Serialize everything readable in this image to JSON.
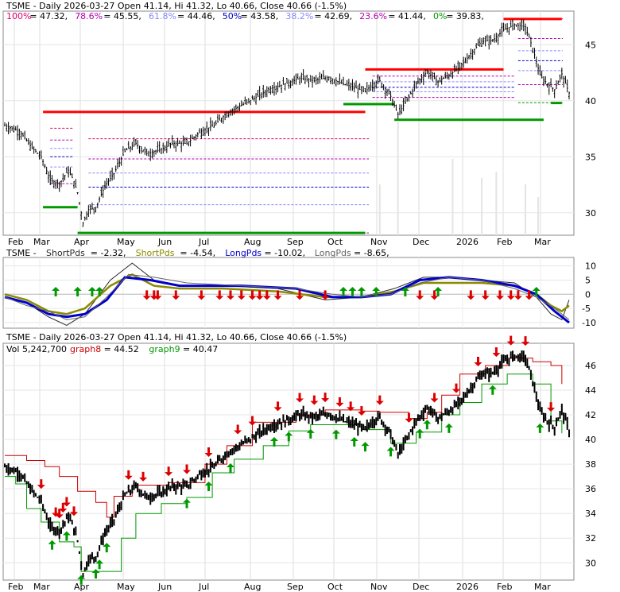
{
  "chart_data": [
    {
      "type": "candlestick",
      "panel": "price",
      "header": {
        "title": "TSME - Daily 2026-03-27 Open 41.14, Hi 41.32, Lo 40.66, Close 40.66 (-1.5%)",
        "fib_levels": [
          {
            "label": "100%",
            "value": "47.32",
            "color": "#e0006e"
          },
          {
            "label": "78.6%",
            "value": "45.55",
            "color": "#b400b4"
          },
          {
            "label": "61.8%",
            "value": "44.46",
            "color": "#8888ff"
          },
          {
            "label": "50%",
            "value": "43.58",
            "color": "#0000cc"
          },
          {
            "label": "38.2%",
            "value": "42.69",
            "color": "#8888ff"
          },
          {
            "label": "23.6%",
            "value": "41.44",
            "color": "#b400b4"
          },
          {
            "label": "0%",
            "value": "39.83",
            "color": "#009900"
          }
        ]
      },
      "x_labels": [
        "Feb",
        "Mar",
        "Apr",
        "May",
        "Jun",
        "Jul",
        "Aug",
        "Sep",
        "Oct",
        "Nov",
        "Dec",
        "2026",
        "Feb",
        "Mar"
      ],
      "y_ticks": [
        30,
        35,
        40,
        45
      ],
      "ylim": [
        28,
        48
      ],
      "resistance_levels": [
        {
          "y": 39.0,
          "x_from": "Mar",
          "x_to": "Oct"
        },
        {
          "y": 42.8,
          "x_from": "Oct",
          "x_to": "Feb"
        },
        {
          "y": 47.3,
          "x_from": "Feb",
          "x_to": "Mar"
        }
      ],
      "support_levels": [
        {
          "y": 30.5,
          "x_from": "Mar",
          "x_to": "Apr"
        },
        {
          "y": 28.2,
          "x_from": "Apr",
          "x_to": "Oct"
        },
        {
          "y": 39.7,
          "x_from": "Oct",
          "x_to": "Nov"
        },
        {
          "y": 38.3,
          "x_from": "Nov",
          "x_to": "Mar"
        },
        {
          "y": 39.8,
          "x_from": "Mar",
          "x_to": "Mar"
        }
      ],
      "price_path": [
        [
          0,
          37.8
        ],
        [
          8,
          37.3
        ],
        [
          15,
          35.8
        ],
        [
          20,
          35.0
        ],
        [
          25,
          32.9
        ],
        [
          30,
          32.6
        ],
        [
          35,
          33.8
        ],
        [
          38,
          32.8
        ],
        [
          40,
          31.8
        ],
        [
          43,
          29.1
        ],
        [
          46,
          30.3
        ],
        [
          50,
          30.5
        ],
        [
          55,
          32.4
        ],
        [
          60,
          33.5
        ],
        [
          66,
          35.5
        ],
        [
          72,
          36.2
        ],
        [
          78,
          35.3
        ],
        [
          85,
          35.6
        ],
        [
          92,
          36.2
        ],
        [
          100,
          36.2
        ],
        [
          108,
          37.3
        ],
        [
          115,
          37.8
        ],
        [
          122,
          38.9
        ],
        [
          130,
          39.6
        ],
        [
          138,
          40.3
        ],
        [
          146,
          41.1
        ],
        [
          154,
          41.5
        ],
        [
          162,
          42.0
        ],
        [
          170,
          41.8
        ],
        [
          178,
          42.1
        ],
        [
          186,
          41.5
        ],
        [
          192,
          41.2
        ],
        [
          198,
          40.8
        ],
        [
          202,
          41.5
        ],
        [
          206,
          41.8
        ],
        [
          212,
          40.4
        ],
        [
          216,
          38.8
        ],
        [
          220,
          39.8
        ],
        [
          226,
          41.5
        ],
        [
          232,
          42.6
        ],
        [
          238,
          41.7
        ],
        [
          244,
          42.3
        ],
        [
          250,
          43.0
        ],
        [
          256,
          44.2
        ],
        [
          262,
          45.3
        ],
        [
          268,
          45.4
        ],
        [
          274,
          46.3
        ],
        [
          280,
          46.8
        ],
        [
          286,
          46.6
        ],
        [
          290,
          44.7
        ],
        [
          294,
          42.3
        ],
        [
          298,
          41.5
        ],
        [
          302,
          41.0
        ],
        [
          306,
          42.4
        ],
        [
          310,
          40.7
        ]
      ],
      "volume_path": [
        [
          206,
          8
        ],
        [
          216,
          18
        ],
        [
          246,
          12
        ],
        [
          262,
          9
        ],
        [
          270,
          10
        ],
        [
          286,
          8
        ],
        [
          293,
          6
        ]
      ]
    },
    {
      "type": "line",
      "panel": "oscillator",
      "header": {
        "title": "TSME",
        "series_labels": [
          {
            "label": "ShortPds",
            "value": "-2.32",
            "color": "#2a2a2a"
          },
          {
            "label": "ShortPds",
            "value": "-4.54",
            "color": "#8b8b00"
          },
          {
            "label": "LongPds",
            "value": "-10.02",
            "color": "#0000cc"
          },
          {
            "label": "LongPds",
            "value": "-8.65",
            "color": "#666666"
          }
        ]
      },
      "y_ticks": [
        10,
        5,
        0,
        -5,
        -10
      ],
      "ylim": [
        -12,
        13
      ],
      "series": [
        {
          "name": "ShortPds",
          "color": "#2a2a2a",
          "values": [
            [
              0,
              -1
            ],
            [
              12,
              -3
            ],
            [
              24,
              -8
            ],
            [
              34,
              -11
            ],
            [
              44,
              -7
            ],
            [
              58,
              5
            ],
            [
              70,
              11
            ],
            [
              82,
              5
            ],
            [
              96,
              3
            ],
            [
              120,
              3
            ],
            [
              150,
              2
            ],
            [
              176,
              -2
            ],
            [
              196,
              -1
            ],
            [
              214,
              2
            ],
            [
              230,
              6
            ],
            [
              244,
              6
            ],
            [
              262,
              5
            ],
            [
              280,
              4
            ],
            [
              292,
              -1
            ],
            [
              300,
              -7
            ],
            [
              306,
              -9
            ],
            [
              310,
              -2
            ]
          ]
        },
        {
          "name": "ShortPds",
          "color": "#8b8b00",
          "values": [
            [
              0,
              0
            ],
            [
              12,
              -2
            ],
            [
              24,
              -6
            ],
            [
              34,
              -7
            ],
            [
              44,
              -5
            ],
            [
              58,
              3
            ],
            [
              70,
              7
            ],
            [
              82,
              3
            ],
            [
              96,
              2
            ],
            [
              120,
              2
            ],
            [
              150,
              1
            ],
            [
              176,
              -1
            ],
            [
              196,
              -1
            ],
            [
              214,
              1
            ],
            [
              230,
              4
            ],
            [
              244,
              4
            ],
            [
              262,
              4
            ],
            [
              280,
              3
            ],
            [
              292,
              0
            ],
            [
              300,
              -4
            ],
            [
              306,
              -6
            ],
            [
              310,
              -4
            ]
          ]
        },
        {
          "name": "LongPds",
          "color": "#0000cc",
          "values": [
            [
              0,
              -1
            ],
            [
              12,
              -3
            ],
            [
              24,
              -7
            ],
            [
              34,
              -8
            ],
            [
              44,
              -7
            ],
            [
              56,
              -2
            ],
            [
              66,
              6
            ],
            [
              80,
              5
            ],
            [
              96,
              3
            ],
            [
              130,
              3
            ],
            [
              160,
              2
            ],
            [
              180,
              -1
            ],
            [
              196,
              -1
            ],
            [
              212,
              0
            ],
            [
              228,
              5
            ],
            [
              244,
              6
            ],
            [
              262,
              5
            ],
            [
              280,
              3
            ],
            [
              292,
              0
            ],
            [
              302,
              -6
            ],
            [
              310,
              -10
            ]
          ]
        },
        {
          "name": "LongPds",
          "color": "#666666",
          "values": [
            [
              0,
              -1
            ],
            [
              12,
              -4
            ],
            [
              24,
              -6
            ],
            [
              34,
              -9
            ],
            [
              44,
              -8
            ],
            [
              56,
              -1
            ],
            [
              68,
              7
            ],
            [
              82,
              6
            ],
            [
              100,
              4
            ],
            [
              130,
              3
            ],
            [
              160,
              2
            ],
            [
              180,
              0
            ],
            [
              196,
              -1
            ],
            [
              212,
              0
            ],
            [
              228,
              4
            ],
            [
              244,
              6
            ],
            [
              262,
              5
            ],
            [
              280,
              2
            ],
            [
              292,
              -1
            ],
            [
              302,
              -5
            ],
            [
              310,
              -9
            ]
          ]
        }
      ],
      "signals_up": [
        28,
        40,
        48,
        52,
        186,
        191,
        196,
        204,
        220,
        238,
        292
      ],
      "signals_down": [
        78,
        82,
        84,
        94,
        108,
        118,
        124,
        130,
        136,
        140,
        144,
        150,
        162,
        176,
        228,
        236,
        256,
        264,
        272,
        278,
        282,
        288
      ]
    },
    {
      "type": "candlestick",
      "panel": "detail",
      "header": {
        "title": "TSME - Daily 2026-03-27 Open 41.14, Hi 41.32, Lo 40.66, Close 40.66 (-1.5%)",
        "volume_text": "Vol 5,242,700",
        "series_labels": [
          {
            "label": "graph8",
            "value": "44.52",
            "color": "#cc0000"
          },
          {
            "label": "graph9",
            "value": "40.47",
            "color": "#009900"
          }
        ]
      },
      "x_labels": [
        "Feb",
        "Mar",
        "Apr",
        "May",
        "Jun",
        "Jul",
        "Aug",
        "Sep",
        "Oct",
        "Nov",
        "Dec",
        "2026",
        "Feb",
        "Mar"
      ],
      "y_ticks": [
        30,
        32,
        34,
        36,
        38,
        40,
        42,
        44,
        46
      ],
      "ylim": [
        28.6,
        47.8
      ],
      "series": [
        {
          "name": "graph8",
          "color": "#cc0000",
          "values": [
            [
              0,
              38.7
            ],
            [
              12,
              38.3
            ],
            [
              22,
              37.8
            ],
            [
              30,
              37.0
            ],
            [
              40,
              35.8
            ],
            [
              50,
              34.9
            ],
            [
              56,
              33.7
            ],
            [
              60,
              35.4
            ],
            [
              70,
              36.3
            ],
            [
              90,
              36.5
            ],
            [
              110,
              38.0
            ],
            [
              122,
              39.5
            ],
            [
              136,
              41.4
            ],
            [
              160,
              42.0
            ],
            [
              176,
              42.4
            ],
            [
              196,
              42.3
            ],
            [
              206,
              42.2
            ],
            [
              222,
              41.7
            ],
            [
              232,
              42.2
            ],
            [
              240,
              43.6
            ],
            [
              250,
              45.3
            ],
            [
              264,
              46.0
            ],
            [
              276,
              46.6
            ],
            [
              290,
              46.3
            ],
            [
              300,
              46.0
            ],
            [
              306,
              44.5
            ]
          ]
        },
        {
          "name": "graph9",
          "color": "#009900",
          "values": [
            [
              0,
              37.0
            ],
            [
              6,
              36.4
            ],
            [
              12,
              34.4
            ],
            [
              20,
              33.3
            ],
            [
              30,
              31.7
            ],
            [
              38,
              31.3
            ],
            [
              42,
              29.3
            ],
            [
              56,
              29.3
            ],
            [
              64,
              32.0
            ],
            [
              72,
              34.0
            ],
            [
              86,
              34.8
            ],
            [
              100,
              35.3
            ],
            [
              114,
              37.3
            ],
            [
              126,
              38.4
            ],
            [
              142,
              39.5
            ],
            [
              156,
              40.7
            ],
            [
              168,
              41.2
            ],
            [
              180,
              41.2
            ],
            [
              196,
              40.8
            ],
            [
              212,
              39.7
            ],
            [
              226,
              40.6
            ],
            [
              240,
              42.0
            ],
            [
              250,
              43.0
            ],
            [
              262,
              44.5
            ],
            [
              276,
              45.3
            ],
            [
              290,
              44.5
            ],
            [
              300,
              41.5
            ],
            [
              306,
              40.5
            ]
          ]
        }
      ],
      "signals_up": [
        26,
        34,
        42,
        50,
        52,
        56,
        100,
        112,
        124,
        148,
        156,
        168,
        182,
        192,
        198,
        212,
        228,
        232,
        244,
        268,
        294
      ],
      "signals_down": [
        20,
        28,
        30,
        32,
        34,
        38,
        68,
        76,
        90,
        100,
        112,
        128,
        136,
        150,
        162,
        170,
        176,
        184,
        190,
        196,
        206,
        222,
        236,
        248,
        260,
        270,
        278,
        286,
        300
      ]
    }
  ]
}
